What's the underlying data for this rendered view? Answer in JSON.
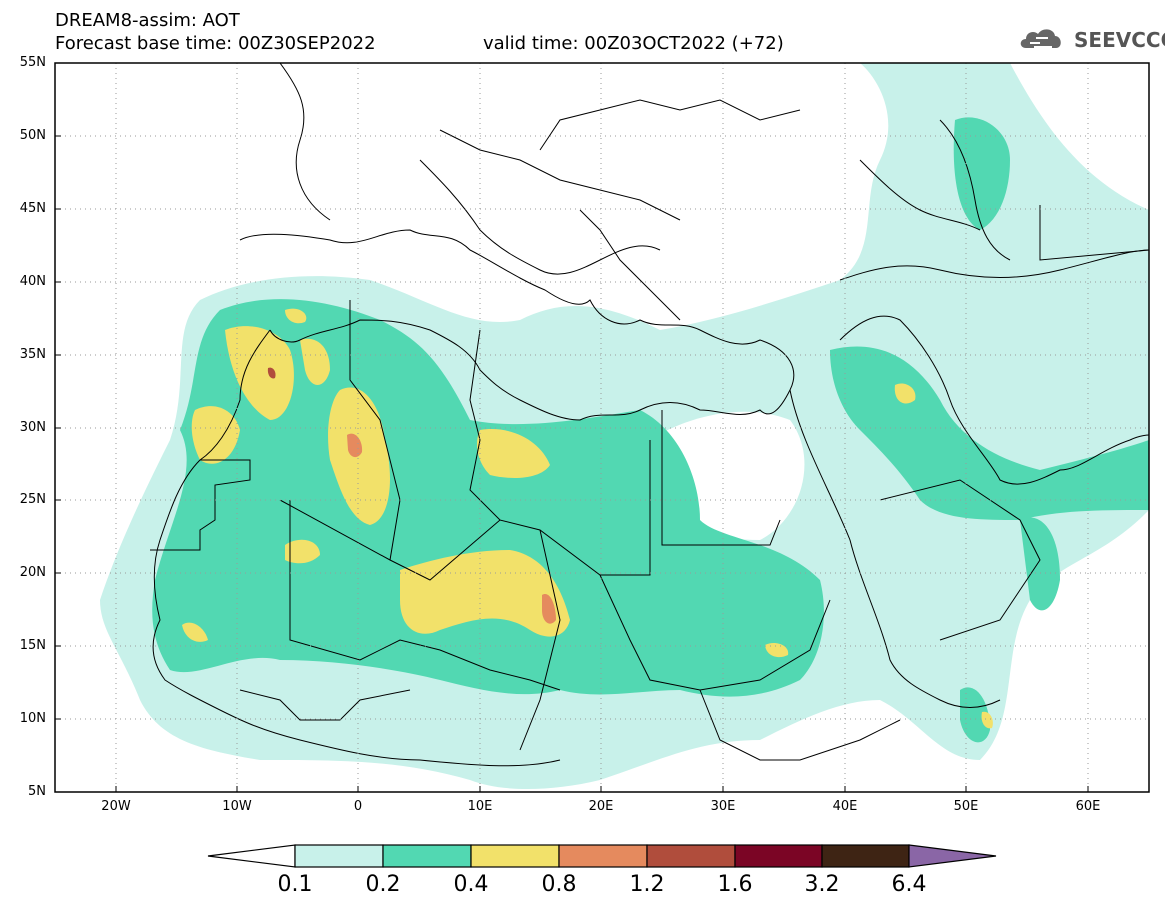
{
  "header": {
    "title_line1": "DREAM8-assim: AOT",
    "title_line2": "Forecast base time: 00Z30SEP2022",
    "valid_time": "valid time: 00Z03OCT2022 (+72)",
    "logo_text": "SEEVCCC",
    "logo_icon": "cloud-icon"
  },
  "map": {
    "region": "North Africa / Middle East",
    "lat_labels": [
      "55N",
      "50N",
      "45N",
      "40N",
      "35N",
      "30N",
      "25N",
      "20N",
      "15N",
      "10N",
      "5N"
    ],
    "lon_labels": [
      "20W",
      "10W",
      "0",
      "10E",
      "20E",
      "30E",
      "40E",
      "50E",
      "60E"
    ],
    "lat_range": [
      5,
      55
    ],
    "lon_range": [
      -25,
      65
    ]
  },
  "colorbar": {
    "labels": [
      "0.1",
      "0.2",
      "0.4",
      "0.8",
      "1.2",
      "1.6",
      "3.2",
      "6.4"
    ],
    "colors": [
      "#ffffff",
      "#c8f1ea",
      "#52d8b2",
      "#f2e16a",
      "#e58a5e",
      "#b04d3c",
      "#7b0525",
      "#3e2414",
      "#8a66a6"
    ]
  }
}
